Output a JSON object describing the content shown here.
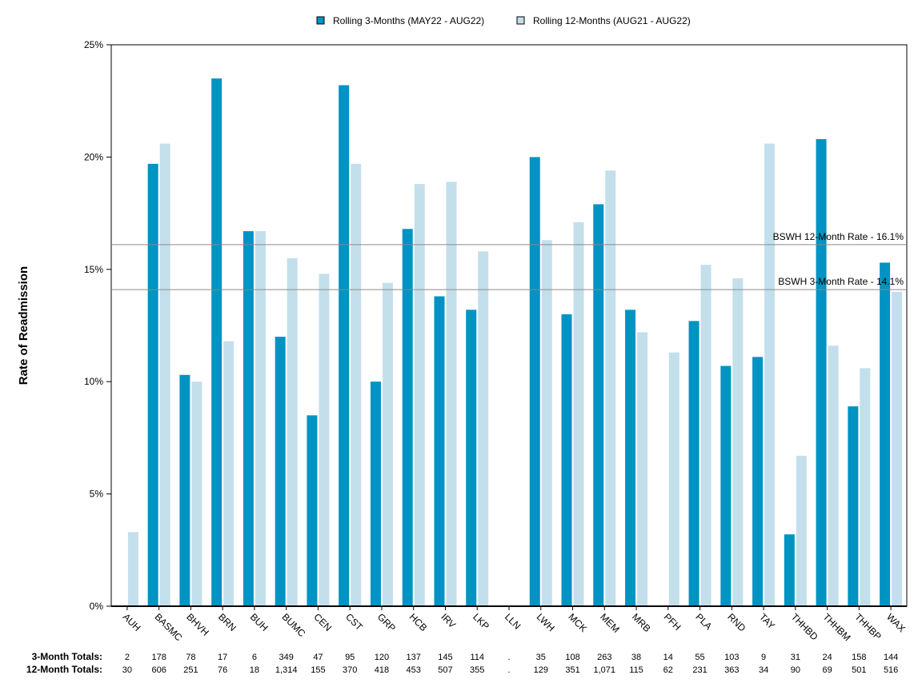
{
  "chart_data": {
    "type": "bar",
    "ylabel": "Rate of Readmission",
    "ylim": [
      0,
      25
    ],
    "yticks": [
      0,
      5,
      10,
      15,
      20,
      25
    ],
    "ytick_labels": [
      "0%",
      "5%",
      "10%",
      "15%",
      "20%",
      "25%"
    ],
    "legend_position": "top-center",
    "categories": [
      "AUH",
      "BASMC",
      "BHVH",
      "BRN",
      "BUH",
      "BUMC",
      "CEN",
      "CST",
      "GRP",
      "HCB",
      "IRV",
      "LKP",
      "LLN",
      "LWH",
      "MCK",
      "MEM",
      "MRB",
      "PFH",
      "PLA",
      "RND",
      "TAY",
      "THHBD",
      "THHBM",
      "THHBP",
      "WAX"
    ],
    "series": [
      {
        "name": "Rolling 3-Months (MAY22 - AUG22)",
        "color": "#0093C4",
        "values": [
          0,
          19.7,
          10.3,
          23.5,
          16.7,
          12.0,
          8.5,
          23.2,
          10.0,
          16.8,
          13.8,
          13.2,
          0,
          20.0,
          13.0,
          17.9,
          13.2,
          0,
          12.7,
          10.7,
          11.1,
          3.2,
          20.8,
          8.9,
          15.3
        ]
      },
      {
        "name": "Rolling 12-Months (AUG21 - AUG22)",
        "color": "#C3DFEB",
        "values": [
          3.3,
          20.6,
          10.0,
          11.8,
          16.7,
          15.5,
          14.8,
          19.7,
          14.4,
          18.8,
          18.9,
          15.8,
          0,
          16.3,
          17.1,
          19.4,
          12.2,
          11.3,
          15.2,
          14.6,
          20.6,
          6.7,
          11.6,
          10.6,
          14.0
        ]
      }
    ],
    "reference_lines": [
      {
        "label": "BSWH 12-Month Rate - 16.1%",
        "value": 16.1
      },
      {
        "label": "BSWH  3-Month Rate - 14.1%",
        "value": 14.1
      }
    ],
    "totals": [
      {
        "label": "3-Month Totals:",
        "values": [
          "2",
          "178",
          "78",
          "17",
          "6",
          "349",
          "47",
          "95",
          "120",
          "137",
          "145",
          "114",
          ".",
          "35",
          "108",
          "263",
          "38",
          "14",
          "55",
          "103",
          "9",
          "31",
          "24",
          "158",
          "144"
        ]
      },
      {
        "label": "12-Month Totals:",
        "values": [
          "30",
          "606",
          "251",
          "76",
          "18",
          "1,314",
          "155",
          "370",
          "418",
          "453",
          "507",
          "355",
          ".",
          "129",
          "351",
          "1,071",
          "115",
          "62",
          "231",
          "363",
          "34",
          "90",
          "69",
          "501",
          "516"
        ]
      }
    ],
    "grid": false
  }
}
